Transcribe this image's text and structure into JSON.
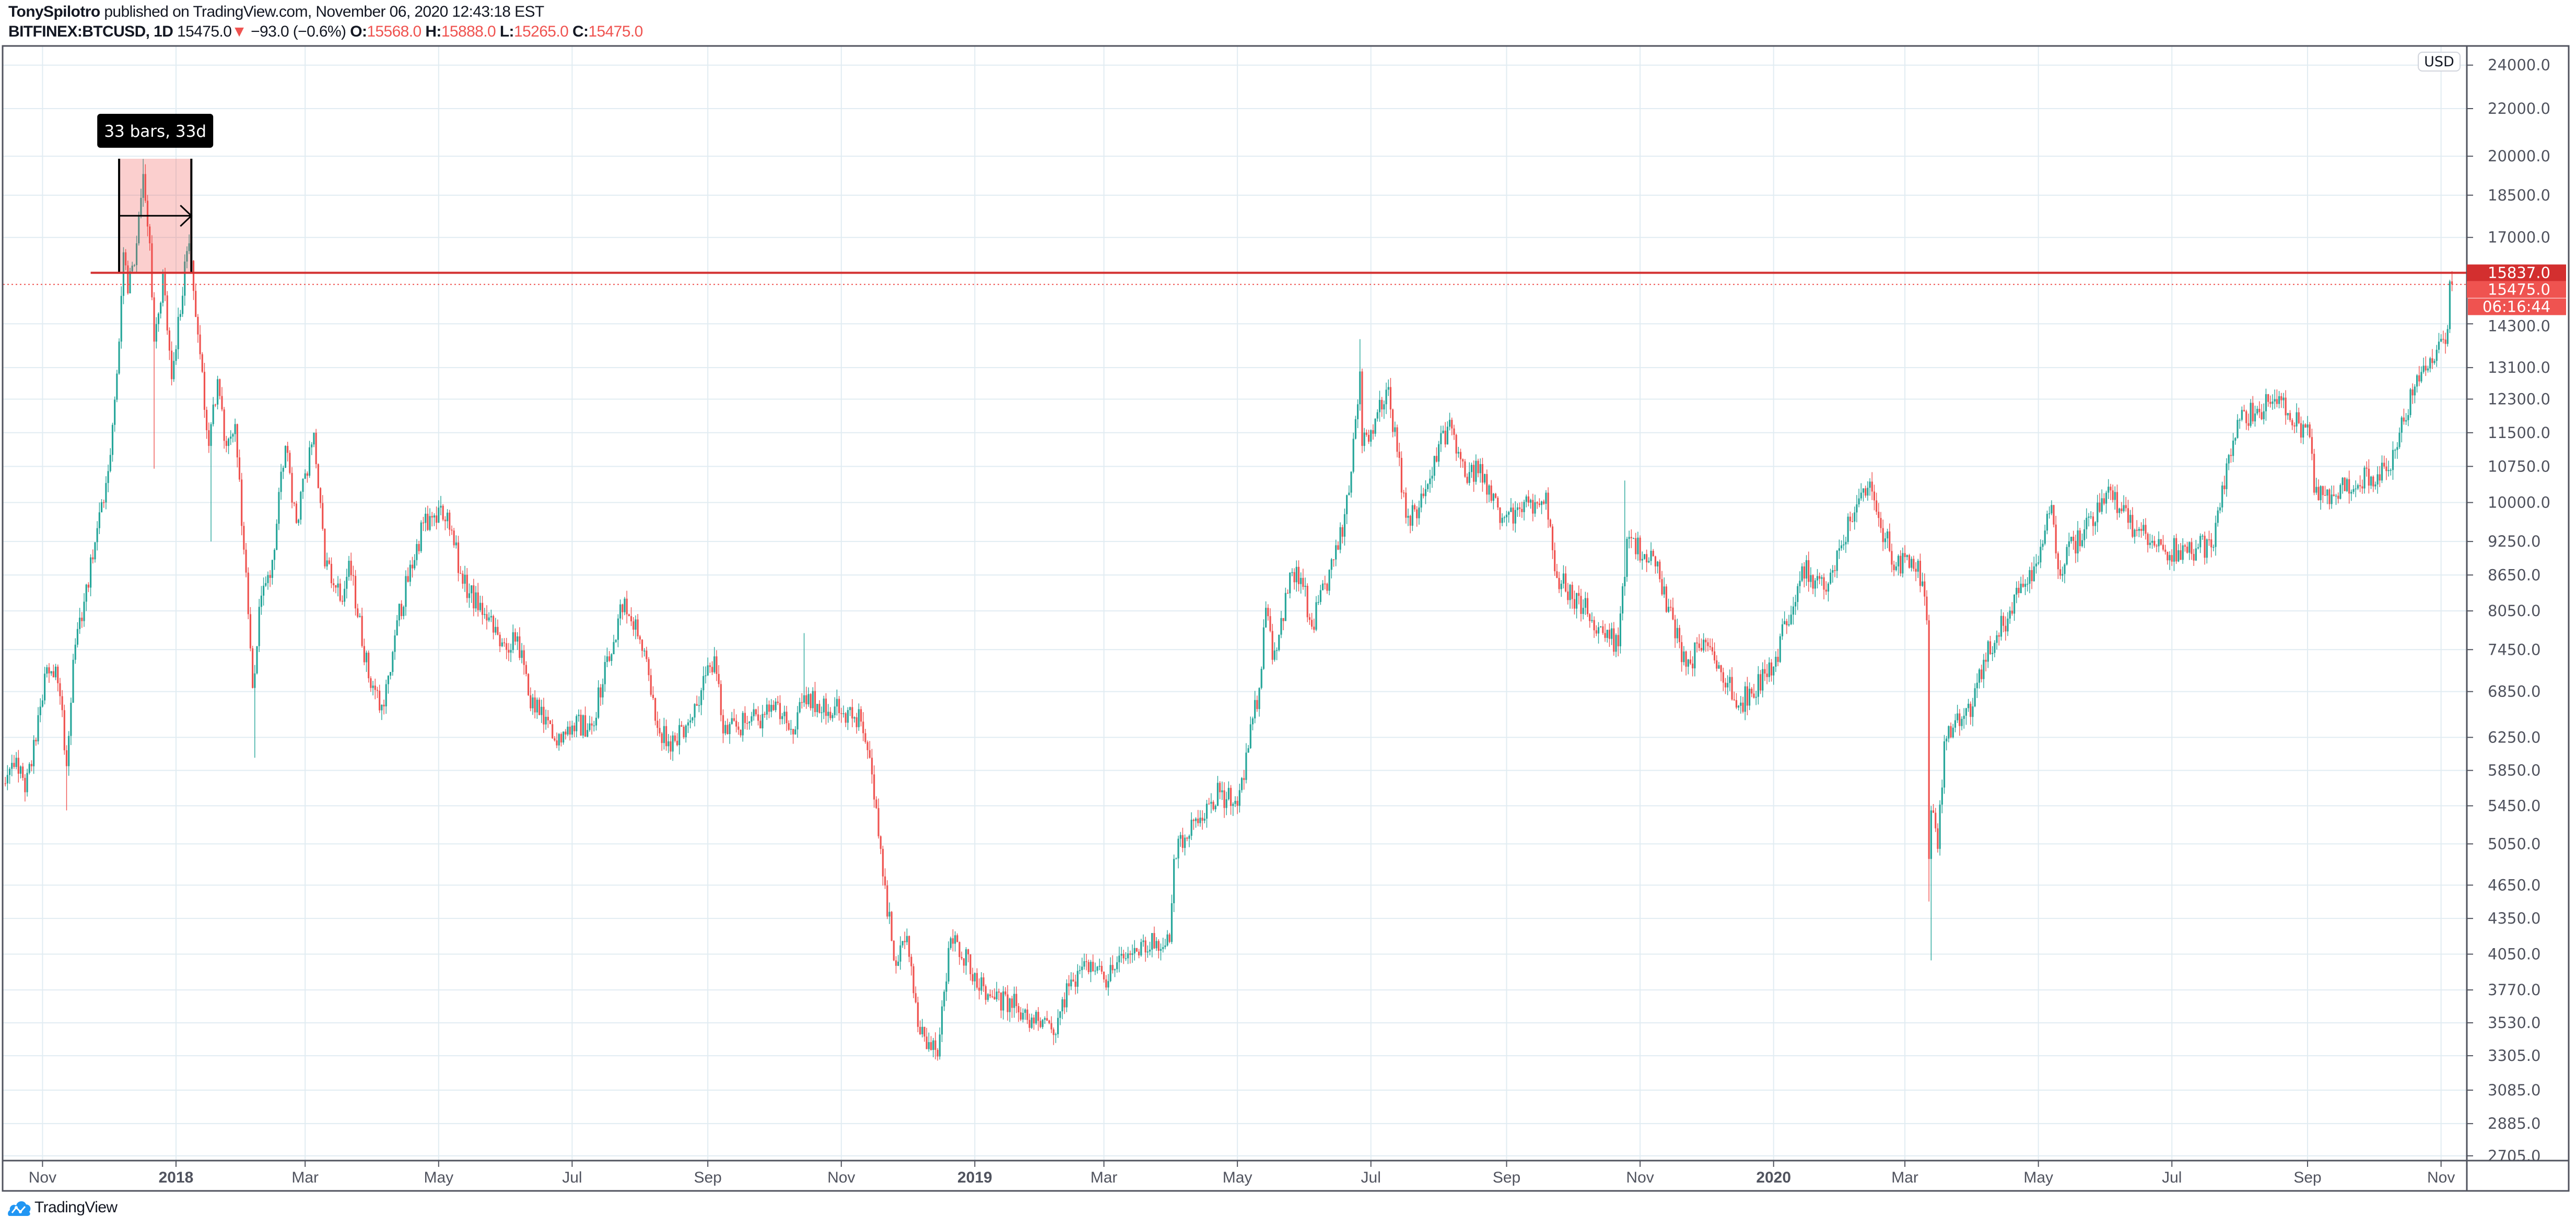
{
  "header": {
    "author": "TonySpilotro",
    "published_text": "published on TradingView.com, November 06, 2020 12:43:18 EST",
    "symbol": "BITFINEX:BTCUSD, 1D",
    "last": "15475.0",
    "change_arrow": "▼",
    "change": "−93.0 (−0.6%)",
    "o_label": "O:",
    "o": "15568.0",
    "h_label": "H:",
    "h": "15888.0",
    "l_label": "L:",
    "l": "15265.0",
    "c_label": "C:",
    "c": "15475.0"
  },
  "logo": {
    "text": "TradingView",
    "icon": "tradingview-cloud-icon",
    "color": "#2196f3"
  },
  "colors": {
    "up": "#26a69a",
    "down": "#ef5350",
    "grid": "#e1ecf2",
    "border": "#50535e",
    "hline": "#d32f2f",
    "last_price": "#ef5350",
    "range_fill": "#f2cdcd"
  },
  "chart_data": {
    "type": "candlestick",
    "title": "",
    "symbol": "BITFINEX:BTCUSD",
    "interval": "1D",
    "currency_badge": "USD",
    "y_scale": "log",
    "ylim": [
      2680,
      24900
    ],
    "xlim": [
      "2017-10-15",
      "2020-11-10"
    ],
    "grid": true,
    "price_ticks": [
      "24000.0",
      "22000.0",
      "20000.0",
      "18500.0",
      "17000.0",
      "14300.0",
      "13100.0",
      "12300.0",
      "11500.0",
      "10750.0",
      "10000.0",
      "9250.0",
      "8650.0",
      "8050.0",
      "7450.0",
      "6850.0",
      "6250.0",
      "5850.0",
      "5450.0",
      "5050.0",
      "4650.0",
      "4350.0",
      "4050.0",
      "3770.0",
      "3530.0",
      "3305.0",
      "3085.0",
      "2885.0",
      "2705.0"
    ],
    "time_ticks": [
      {
        "date": "2017-11-01",
        "label": "Nov",
        "bold": false
      },
      {
        "date": "2018-01-01",
        "label": "2018",
        "bold": true
      },
      {
        "date": "2018-03-01",
        "label": "Mar",
        "bold": false
      },
      {
        "date": "2018-05-01",
        "label": "May",
        "bold": false
      },
      {
        "date": "2018-07-01",
        "label": "Jul",
        "bold": false
      },
      {
        "date": "2018-09-01",
        "label": "Sep",
        "bold": false
      },
      {
        "date": "2018-11-01",
        "label": "Nov",
        "bold": false
      },
      {
        "date": "2019-01-01",
        "label": "2019",
        "bold": true
      },
      {
        "date": "2019-03-01",
        "label": "Mar",
        "bold": false
      },
      {
        "date": "2019-05-01",
        "label": "May",
        "bold": false
      },
      {
        "date": "2019-07-01",
        "label": "Jul",
        "bold": false
      },
      {
        "date": "2019-09-01",
        "label": "Sep",
        "bold": false
      },
      {
        "date": "2019-11-01",
        "label": "Nov",
        "bold": false
      },
      {
        "date": "2020-01-01",
        "label": "2020",
        "bold": true
      },
      {
        "date": "2020-03-01",
        "label": "Mar",
        "bold": false
      },
      {
        "date": "2020-05-01",
        "label": "May",
        "bold": false
      },
      {
        "date": "2020-07-01",
        "label": "Jul",
        "bold": false
      },
      {
        "date": "2020-09-01",
        "label": "Sep",
        "bold": false
      },
      {
        "date": "2020-11-01",
        "label": "Nov",
        "bold": false
      }
    ],
    "close_path": [
      [
        "2017-10-15",
        5700
      ],
      [
        "2017-10-20",
        6000
      ],
      [
        "2017-10-24",
        5600
      ],
      [
        "2017-10-29",
        6200
      ],
      [
        "2017-11-02",
        7100
      ],
      [
        "2017-11-07",
        7200
      ],
      [
        "2017-11-10",
        6600
      ],
      [
        "2017-11-12",
        5900
      ],
      [
        "2017-11-15",
        7300
      ],
      [
        "2017-11-20",
        8200
      ],
      [
        "2017-11-26",
        9500
      ],
      [
        "2017-11-29",
        10000
      ],
      [
        "2017-12-02",
        11000
      ],
      [
        "2017-12-06",
        13800
      ],
      [
        "2017-12-08",
        16500
      ],
      [
        "2017-12-10",
        15200
      ],
      [
        "2017-12-14",
        16800
      ],
      [
        "2017-12-17",
        19300
      ],
      [
        "2017-12-20",
        16800
      ],
      [
        "2017-12-22",
        13800
      ],
      [
        "2017-12-26",
        15800
      ],
      [
        "2017-12-30",
        12800
      ],
      [
        "2018-01-02",
        14500
      ],
      [
        "2018-01-07",
        16800
      ],
      [
        "2018-01-10",
        14500
      ],
      [
        "2018-01-16",
        11200
      ],
      [
        "2018-01-20",
        12800
      ],
      [
        "2018-01-24",
        11200
      ],
      [
        "2018-01-28",
        11700
      ],
      [
        "2018-02-01",
        9100
      ],
      [
        "2018-02-05",
        6900
      ],
      [
        "2018-02-09",
        8300
      ],
      [
        "2018-02-13",
        8600
      ],
      [
        "2018-02-20",
        11200
      ],
      [
        "2018-02-25",
        9600
      ],
      [
        "2018-03-05",
        11500
      ],
      [
        "2018-03-10",
        8800
      ],
      [
        "2018-03-18",
        8200
      ],
      [
        "2018-03-21",
        8900
      ],
      [
        "2018-03-31",
        6900
      ],
      [
        "2018-04-06",
        6650
      ],
      [
        "2018-04-12",
        7900
      ],
      [
        "2018-04-24",
        9600
      ],
      [
        "2018-05-05",
        9800
      ],
      [
        "2018-05-12",
        8500
      ],
      [
        "2018-05-22",
        8000
      ],
      [
        "2018-05-29",
        7500
      ],
      [
        "2018-06-06",
        7650
      ],
      [
        "2018-06-11",
        6800
      ],
      [
        "2018-06-24",
        6150
      ],
      [
        "2018-07-01",
        6400
      ],
      [
        "2018-07-10",
        6400
      ],
      [
        "2018-07-17",
        7350
      ],
      [
        "2018-07-25",
        8250
      ],
      [
        "2018-08-01",
        7600
      ],
      [
        "2018-08-10",
        6300
      ],
      [
        "2018-08-14",
        6200
      ],
      [
        "2018-08-22",
        6400
      ],
      [
        "2018-09-04",
        7350
      ],
      [
        "2018-09-08",
        6300
      ],
      [
        "2018-09-20",
        6450
      ],
      [
        "2018-10-01",
        6600
      ],
      [
        "2018-10-11",
        6350
      ],
      [
        "2018-10-15",
        6800
      ],
      [
        "2018-11-10",
        6450
      ],
      [
        "2018-11-14",
        6000
      ],
      [
        "2018-11-19",
        5000
      ],
      [
        "2018-11-25",
        4000
      ],
      [
        "2018-12-01",
        4200
      ],
      [
        "2018-12-07",
        3450
      ],
      [
        "2018-12-15",
        3300
      ],
      [
        "2018-12-20",
        4100
      ],
      [
        "2018-12-24",
        4150
      ],
      [
        "2019-01-01",
        3900
      ],
      [
        "2019-01-10",
        3700
      ],
      [
        "2019-01-20",
        3650
      ],
      [
        "2019-01-31",
        3500
      ],
      [
        "2019-02-07",
        3450
      ],
      [
        "2019-02-10",
        3700
      ],
      [
        "2019-02-19",
        3950
      ],
      [
        "2019-03-01",
        3850
      ],
      [
        "2019-03-15",
        4100
      ],
      [
        "2019-03-31",
        4150
      ],
      [
        "2019-04-02",
        4900
      ],
      [
        "2019-04-10",
        5300
      ],
      [
        "2019-04-23",
        5600
      ],
      [
        "2019-05-01",
        5450
      ],
      [
        "2019-05-11",
        6900
      ],
      [
        "2019-05-14",
        8100
      ],
      [
        "2019-05-17",
        7300
      ],
      [
        "2019-05-26",
        8700
      ],
      [
        "2019-05-30",
        8600
      ],
      [
        "2019-06-04",
        7800
      ],
      [
        "2019-06-16",
        9100
      ],
      [
        "2019-06-21",
        10200
      ],
      [
        "2019-06-26",
        13000
      ],
      [
        "2019-06-27",
        11200
      ],
      [
        "2019-07-09",
        12600
      ],
      [
        "2019-07-17",
        9700
      ],
      [
        "2019-07-23",
        9900
      ],
      [
        "2019-08-06",
        11800
      ],
      [
        "2019-08-14",
        10400
      ],
      [
        "2019-08-20",
        10800
      ],
      [
        "2019-08-29",
        9600
      ],
      [
        "2019-09-19",
        10200
      ],
      [
        "2019-09-24",
        8600
      ],
      [
        "2019-10-06",
        8100
      ],
      [
        "2019-10-22",
        7500
      ],
      [
        "2019-10-26",
        9300
      ],
      [
        "2019-11-08",
        8800
      ],
      [
        "2019-11-22",
        7200
      ],
      [
        "2019-11-30",
        7600
      ],
      [
        "2019-12-17",
        6700
      ],
      [
        "2020-01-01",
        7200
      ],
      [
        "2020-01-14",
        8800
      ],
      [
        "2020-01-24",
        8400
      ],
      [
        "2020-02-10",
        10200
      ],
      [
        "2020-02-13",
        10300
      ],
      [
        "2020-02-26",
        8800
      ],
      [
        "2020-03-07",
        8900
      ],
      [
        "2020-03-11",
        7900
      ],
      [
        "2020-03-12",
        4900
      ],
      [
        "2020-03-13",
        5400
      ],
      [
        "2020-03-16",
        5000
      ],
      [
        "2020-03-19",
        6200
      ],
      [
        "2020-04-01",
        6650
      ],
      [
        "2020-04-06",
        7300
      ],
      [
        "2020-04-29",
        8800
      ],
      [
        "2020-05-07",
        9950
      ],
      [
        "2020-05-10",
        8750
      ],
      [
        "2020-06-01",
        10200
      ],
      [
        "2020-06-15",
        9450
      ],
      [
        "2020-06-27",
        9100
      ],
      [
        "2020-07-20",
        9150
      ],
      [
        "2020-07-27",
        11000
      ],
      [
        "2020-08-01",
        11800
      ],
      [
        "2020-08-17",
        12300
      ],
      [
        "2020-09-02",
        11400
      ],
      [
        "2020-09-04",
        10200
      ],
      [
        "2020-09-08",
        10150
      ],
      [
        "2020-10-07",
        10650
      ],
      [
        "2020-10-13",
        11500
      ],
      [
        "2020-10-21",
        12900
      ],
      [
        "2020-10-31",
        13800
      ],
      [
        "2020-11-04",
        14150
      ],
      [
        "2020-11-05",
        15568
      ]
    ],
    "wicks": [
      [
        "2017-11-12",
        "low",
        5400
      ],
      [
        "2017-12-17",
        "high",
        19891
      ],
      [
        "2017-12-22",
        "low",
        10700
      ],
      [
        "2018-01-17",
        "low",
        9250
      ],
      [
        "2018-02-06",
        "low",
        6000
      ],
      [
        "2018-10-15",
        "high",
        7700
      ],
      [
        "2019-06-26",
        "high",
        13868
      ],
      [
        "2019-10-25",
        "high",
        10450
      ],
      [
        "2020-03-12",
        "low",
        4500
      ],
      [
        "2020-03-13",
        "low",
        4000
      ]
    ],
    "last_candle": {
      "date": "2020-11-06",
      "open": 15568.0,
      "high": 15888.0,
      "low": 15265.0,
      "close": 15475.0
    },
    "horizontal_line": {
      "price": 15837.0,
      "start_date": "2017-11-23",
      "label": "15837.0"
    },
    "last_price_line": {
      "price": 15475.0,
      "label": "15475.0",
      "countdown": "06:16:44"
    },
    "date_range": {
      "start": "2017-12-06",
      "end": "2018-01-08",
      "price_low": 15837,
      "price_high": 19900,
      "label": "33 bars, 33d"
    }
  }
}
